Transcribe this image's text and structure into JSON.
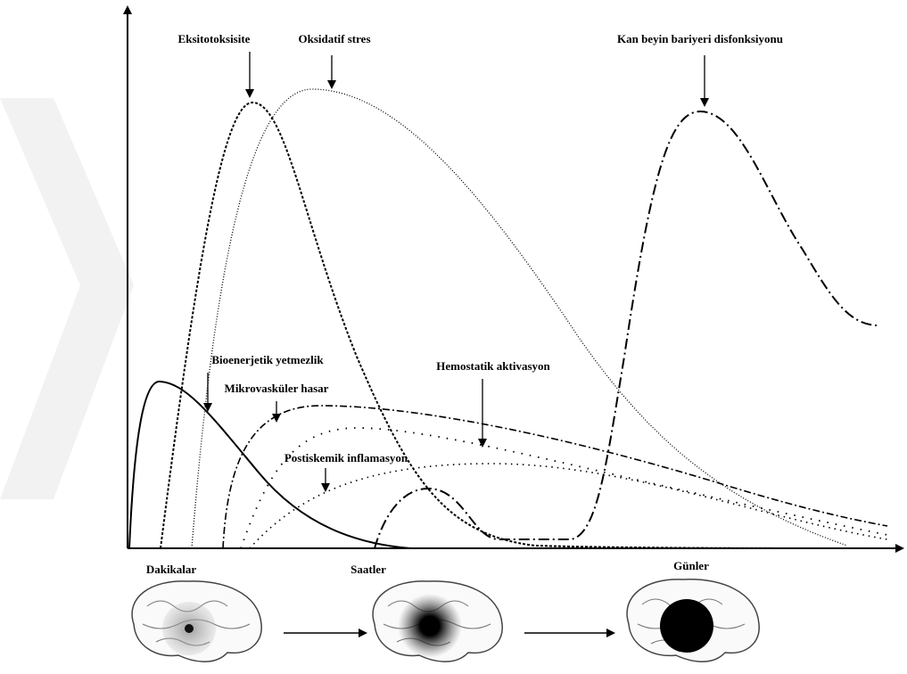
{
  "curve_labels": [
    "Eksitotoksisite",
    "Oksidatif stres",
    "Kan beyin bariyeri disfonksiyonu",
    "Bioenerjetik yetmezlik",
    "Mikrovasküler hasar",
    "Hemostatik aktivasyon",
    "Postiskemik inflamasyon"
  ],
  "time_labels": [
    "Dakikalar",
    "Saatler",
    "Günler"
  ]
}
